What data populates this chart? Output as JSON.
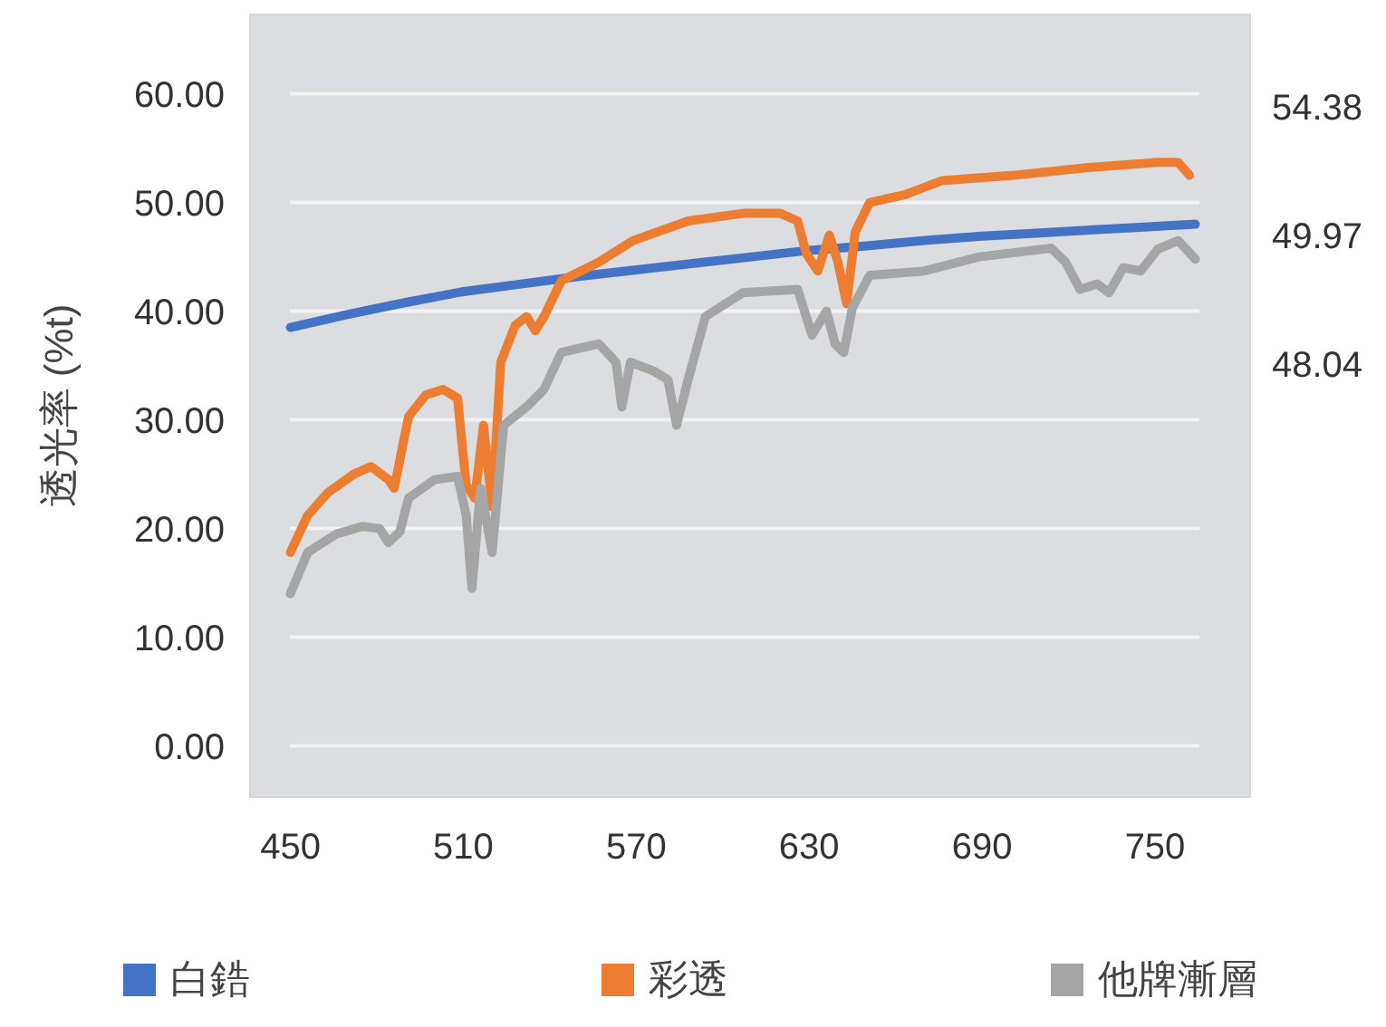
{
  "chart_data": {
    "type": "line",
    "ylabel": "透光率 (%t)",
    "xlim": [
      436,
      783
    ],
    "xticks": [
      450,
      510,
      570,
      630,
      690,
      750
    ],
    "ylim": [
      -4.7,
      67.3
    ],
    "yticks": [
      {
        "value": 0,
        "label": "0.00"
      },
      {
        "value": 10,
        "label": "10.00"
      },
      {
        "value": 20,
        "label": "20.00"
      },
      {
        "value": 30,
        "label": "30.00"
      },
      {
        "value": 40,
        "label": "40.00"
      },
      {
        "value": 50,
        "label": "50.00"
      },
      {
        "value": 60,
        "label": "60.00"
      }
    ],
    "grid": "y",
    "legend": "bottom",
    "marker": "none",
    "line_style": "solid",
    "annotations": [
      "54.38",
      "49.97",
      "48.04"
    ],
    "series": [
      {
        "name": "白鋯",
        "color": "#4472c4",
        "x": [
          450,
          470,
          490,
          510,
          530,
          550,
          570,
          590,
          610,
          630,
          650,
          670,
          690,
          710,
          730,
          750,
          764
        ],
        "values": [
          38.5,
          39.7,
          40.8,
          41.8,
          42.5,
          43.2,
          43.8,
          44.4,
          45,
          45.6,
          46,
          46.5,
          46.9,
          47.2,
          47.5,
          47.8,
          48
        ]
      },
      {
        "name": "彩透",
        "color": "#ed7d31",
        "x": [
          450,
          456,
          463,
          472,
          478,
          484,
          486,
          491,
          497,
          503,
          508,
          511,
          514,
          517,
          520,
          523,
          528,
          532,
          535,
          538,
          544,
          557,
          569,
          588,
          607,
          620,
          626,
          629,
          633,
          637,
          640,
          643,
          646,
          651,
          663,
          676,
          701,
          726,
          751,
          758,
          762
        ],
        "values": [
          17.8,
          21.2,
          23.3,
          25,
          25.7,
          24.5,
          23.7,
          30.3,
          32.3,
          32.8,
          32,
          24,
          22.8,
          29.5,
          22,
          35.3,
          38.7,
          39.5,
          38.2,
          39.5,
          42.8,
          44.5,
          46.5,
          48.3,
          49,
          49,
          48.3,
          45.3,
          43.7,
          47,
          44.5,
          40.7,
          47.3,
          50,
          50.7,
          52,
          52.5,
          53.2,
          53.7,
          53.7,
          52.5
        ]
      },
      {
        "name": "他牌漸層",
        "color": "#a5a5a5",
        "x": [
          450,
          456,
          466,
          475,
          481,
          484,
          488,
          491,
          500,
          508,
          511,
          513,
          516,
          520,
          524,
          532,
          538,
          544,
          557,
          563,
          565,
          568,
          576,
          581,
          584,
          588,
          594,
          607,
          626,
          631,
          636,
          639,
          642,
          645,
          651,
          670,
          689,
          714,
          719,
          724,
          730,
          734,
          739,
          745,
          751,
          758,
          764
        ],
        "values": [
          14,
          17.8,
          19.5,
          20.2,
          20,
          18.7,
          19.7,
          22.8,
          24.5,
          24.8,
          21.2,
          14.5,
          23.7,
          17.8,
          29.5,
          31.2,
          32.8,
          36.2,
          37,
          35.3,
          31.2,
          35.3,
          34.5,
          33.7,
          29.5,
          33.7,
          39.5,
          41.7,
          42,
          37.8,
          40,
          37,
          36.2,
          40.3,
          43.3,
          43.7,
          45,
          45.8,
          44.5,
          42,
          42.5,
          41.7,
          44,
          43.7,
          45.7,
          46.5,
          44.8
        ]
      }
    ]
  }
}
